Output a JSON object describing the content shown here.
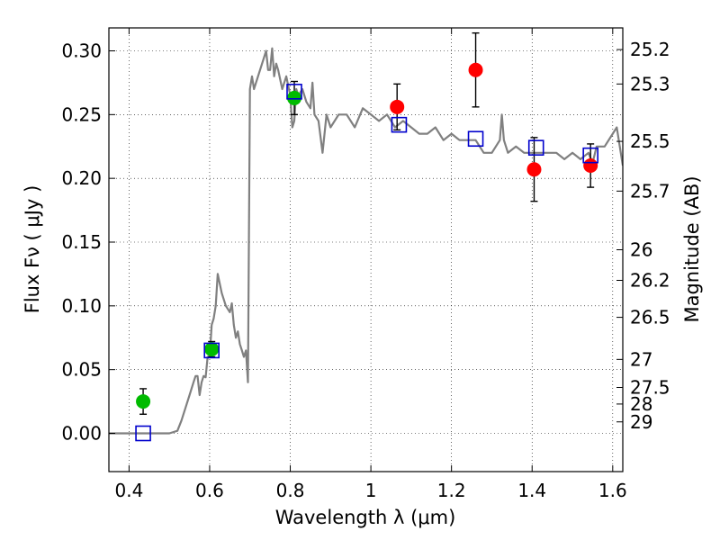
{
  "chart_data": {
    "type": "scatter",
    "xlabel": "Wavelength  λ (μm)",
    "ylabel": "Flux  Fν  ( μJy )",
    "y2label": "Magnitude (AB)",
    "xlim": [
      0.35,
      1.625
    ],
    "ylim": [
      -0.03,
      0.318
    ],
    "grid": true,
    "x_ticks": [
      0.4,
      0.6,
      0.8,
      1.0,
      1.2,
      1.4,
      1.6
    ],
    "x_tick_labels": [
      "0.4",
      "0.6",
      "0.8",
      "1",
      "1.2",
      "1.4",
      "1.6"
    ],
    "y_ticks": [
      0.0,
      0.05,
      0.1,
      0.15,
      0.2,
      0.25,
      0.3
    ],
    "y_tick_labels": [
      "0.00",
      "0.05",
      "0.10",
      "0.15",
      "0.20",
      "0.25",
      "0.30"
    ],
    "mag_ticks": [
      {
        "label": "25.2",
        "flux": 0.301
      },
      {
        "label": "25.3",
        "flux": 0.274
      },
      {
        "label": "25.5",
        "flux": 0.229
      },
      {
        "label": "25.7",
        "flux": 0.19
      },
      {
        "label": "26",
        "flux": 0.144
      },
      {
        "label": "26.2",
        "flux": 0.12
      },
      {
        "label": "26.5",
        "flux": 0.091
      },
      {
        "label": "27",
        "flux": 0.058
      },
      {
        "label": "27.5",
        "flux": 0.036
      },
      {
        "label": "28",
        "flux": 0.023
      },
      {
        "label": "29",
        "flux": 0.009
      }
    ],
    "series": [
      {
        "kind": "line",
        "color": "#808080",
        "x": [
          0.35,
          0.5,
          0.52,
          0.53,
          0.54,
          0.55,
          0.56,
          0.565,
          0.57,
          0.575,
          0.58,
          0.585,
          0.59,
          0.595,
          0.6,
          0.605,
          0.61,
          0.615,
          0.62,
          0.63,
          0.64,
          0.65,
          0.655,
          0.66,
          0.665,
          0.67,
          0.675,
          0.68,
          0.685,
          0.69,
          0.695,
          0.7,
          0.705,
          0.71,
          0.72,
          0.73,
          0.74,
          0.745,
          0.75,
          0.755,
          0.76,
          0.765,
          0.77,
          0.78,
          0.79,
          0.8,
          0.805,
          0.81,
          0.815,
          0.82,
          0.83,
          0.84,
          0.85,
          0.855,
          0.86,
          0.87,
          0.88,
          0.89,
          0.9,
          0.92,
          0.94,
          0.96,
          0.98,
          1.0,
          1.02,
          1.04,
          1.06,
          1.08,
          1.1,
          1.12,
          1.14,
          1.16,
          1.18,
          1.2,
          1.22,
          1.24,
          1.26,
          1.28,
          1.3,
          1.32,
          1.325,
          1.33,
          1.34,
          1.36,
          1.38,
          1.4,
          1.42,
          1.44,
          1.46,
          1.48,
          1.5,
          1.52,
          1.54,
          1.55,
          1.56,
          1.58,
          1.6,
          1.61,
          1.625
        ],
        "y": [
          0.0,
          0.0,
          0.002,
          0.01,
          0.02,
          0.03,
          0.04,
          0.045,
          0.045,
          0.03,
          0.04,
          0.045,
          0.044,
          0.06,
          0.06,
          0.085,
          0.09,
          0.1,
          0.125,
          0.11,
          0.1,
          0.095,
          0.102,
          0.085,
          0.075,
          0.08,
          0.07,
          0.065,
          0.06,
          0.065,
          0.04,
          0.27,
          0.28,
          0.27,
          0.28,
          0.29,
          0.3,
          0.285,
          0.285,
          0.302,
          0.28,
          0.29,
          0.285,
          0.27,
          0.28,
          0.265,
          0.24,
          0.245,
          0.27,
          0.265,
          0.27,
          0.26,
          0.255,
          0.275,
          0.25,
          0.245,
          0.22,
          0.25,
          0.24,
          0.25,
          0.25,
          0.24,
          0.255,
          0.25,
          0.245,
          0.25,
          0.24,
          0.245,
          0.24,
          0.235,
          0.235,
          0.24,
          0.23,
          0.235,
          0.23,
          0.23,
          0.23,
          0.22,
          0.22,
          0.23,
          0.25,
          0.23,
          0.22,
          0.225,
          0.22,
          0.22,
          0.22,
          0.22,
          0.22,
          0.215,
          0.22,
          0.215,
          0.22,
          0.212,
          0.225,
          0.225,
          0.235,
          0.24,
          0.21
        ]
      },
      {
        "kind": "points",
        "color": "#00bb00",
        "marker": "circle",
        "x": [
          0.435,
          0.605,
          0.81
        ],
        "y": [
          0.025,
          0.066,
          0.263
        ],
        "err": [
          0.01,
          0.006,
          0.013
        ]
      },
      {
        "kind": "points",
        "color": "#ff0000",
        "marker": "circle",
        "x": [
          1.065,
          1.26,
          1.405,
          1.545
        ],
        "y": [
          0.256,
          0.285,
          0.207,
          0.21
        ],
        "err": [
          0.018,
          0.029,
          0.025,
          0.017
        ]
      },
      {
        "kind": "points",
        "color": "#0000cc",
        "marker": "open-square",
        "x": [
          0.435,
          0.605,
          0.81,
          1.07,
          1.26,
          1.41,
          1.545
        ],
        "y": [
          0.0,
          0.065,
          0.268,
          0.242,
          0.231,
          0.224,
          0.218
        ]
      }
    ]
  }
}
